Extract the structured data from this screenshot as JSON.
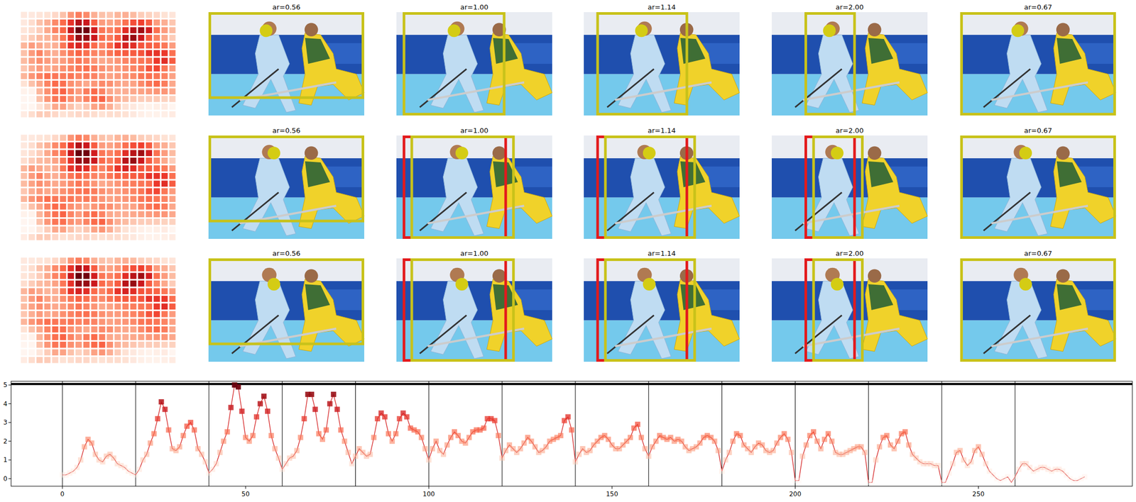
{
  "chart_data": {
    "type": "line",
    "x": [
      0,
      1,
      2,
      3,
      4,
      5,
      6,
      7,
      8,
      9,
      10,
      11,
      12,
      13,
      14,
      15,
      16,
      17,
      18,
      19,
      20,
      21,
      22,
      23,
      24,
      25,
      26,
      27,
      28,
      29,
      30,
      31,
      32,
      33,
      34,
      35,
      36,
      37,
      38,
      39,
      40,
      41,
      42,
      43,
      44,
      45,
      46,
      47,
      48,
      49,
      50,
      51,
      52,
      53,
      54,
      55,
      56,
      57,
      58,
      59,
      60,
      61,
      62,
      63,
      64,
      65,
      66,
      67,
      68,
      69,
      70,
      71,
      72,
      73,
      74,
      75,
      76,
      77,
      78,
      79,
      80,
      81,
      82,
      83,
      84,
      85,
      86,
      87,
      88,
      89,
      90,
      91,
      92,
      93,
      94,
      95,
      96,
      97,
      98,
      99,
      100,
      101,
      102,
      103,
      104,
      105,
      106,
      107,
      108,
      109,
      110,
      111,
      112,
      113,
      114,
      115,
      116,
      117,
      118,
      119,
      120,
      121,
      122,
      123,
      124,
      125,
      126,
      127,
      128,
      129,
      130,
      131,
      132,
      133,
      134,
      135,
      136,
      137,
      138,
      139,
      140,
      141,
      142,
      143,
      144,
      145,
      146,
      147,
      148,
      149,
      150,
      151,
      152,
      153,
      154,
      155,
      156,
      157,
      158,
      159,
      160,
      161,
      162,
      163,
      164,
      165,
      166,
      167,
      168,
      169,
      170,
      171,
      172,
      173,
      174,
      175,
      176,
      177,
      178,
      179,
      180,
      181,
      182,
      183,
      184,
      185,
      186,
      187,
      188,
      189,
      190,
      191,
      192,
      193,
      194,
      195,
      196,
      197,
      198,
      199,
      200,
      201,
      202,
      203,
      204,
      205,
      206,
      207,
      208,
      209,
      210,
      211,
      212,
      213,
      214,
      215,
      216,
      217,
      218,
      219,
      220,
      221,
      222,
      223,
      224,
      225,
      226,
      227,
      228,
      229,
      230,
      231,
      232,
      233,
      234,
      235,
      236,
      237,
      238,
      239,
      240,
      241,
      242,
      243,
      244,
      245,
      246,
      247,
      248,
      249,
      250,
      251,
      252,
      253,
      254,
      255,
      256,
      257,
      258,
      259,
      260,
      261,
      262,
      263,
      264,
      265,
      266,
      267,
      268,
      269,
      270,
      271,
      272,
      273,
      274,
      275,
      276,
      277,
      278,
      279
    ],
    "values": [
      0.2,
      0.2,
      0.3,
      0.4,
      0.6,
      1.0,
      1.7,
      2.1,
      1.9,
      1.3,
      1.0,
      0.9,
      1.2,
      1.3,
      1.1,
      0.8,
      0.7,
      0.6,
      0.4,
      0.3,
      0.2,
      0.5,
      1.0,
      1.3,
      1.9,
      2.4,
      3.2,
      4.1,
      3.7,
      2.6,
      1.6,
      1.5,
      1.7,
      2.3,
      2.8,
      3.0,
      2.6,
      1.6,
      1.3,
      0.9,
      0.3,
      0.5,
      0.8,
      1.4,
      2.0,
      2.5,
      3.8,
      5.0,
      4.9,
      3.6,
      2.2,
      2.0,
      2.3,
      3.3,
      4.0,
      4.4,
      3.6,
      2.3,
      1.6,
      1.1,
      0.5,
      0.8,
      1.1,
      1.2,
      1.5,
      2.2,
      3.2,
      4.5,
      4.5,
      3.7,
      2.4,
      2.1,
      2.6,
      4.0,
      4.5,
      3.7,
      2.6,
      2.0,
      1.4,
      0.8,
      1.2,
      1.6,
      1.4,
      1.2,
      1.3,
      2.2,
      3.2,
      3.5,
      3.3,
      2.4,
      2.0,
      2.4,
      3.2,
      3.5,
      3.3,
      2.7,
      2.6,
      2.5,
      2.2,
      1.6,
      1.0,
      1.6,
      2.0,
      1.5,
      1.3,
      1.8,
      2.2,
      2.5,
      2.3,
      2.0,
      1.9,
      2.2,
      2.5,
      2.6,
      2.6,
      2.7,
      3.2,
      3.2,
      3.1,
      2.3,
      1.1,
      1.5,
      1.8,
      1.6,
      1.4,
      1.6,
      1.9,
      2.2,
      2.0,
      1.7,
      1.4,
      1.5,
      1.7,
      2.0,
      2.1,
      2.2,
      2.3,
      3.1,
      3.3,
      2.6,
      0.9,
      1.3,
      1.6,
      1.4,
      1.5,
      1.8,
      2.0,
      2.2,
      2.3,
      2.1,
      1.8,
      1.6,
      1.6,
      1.8,
      2.0,
      2.2,
      2.7,
      2.9,
      2.2,
      1.6,
      1.2,
      1.7,
      2.0,
      2.3,
      2.2,
      2.1,
      2.2,
      2.0,
      2.1,
      2.0,
      1.7,
      1.5,
      1.6,
      1.7,
      1.9,
      2.2,
      2.3,
      2.2,
      2.0,
      1.5,
      0.4,
      1.0,
      1.4,
      2.0,
      2.4,
      2.3,
      1.8,
      1.6,
      1.4,
      1.7,
      1.9,
      1.8,
      1.5,
      1.4,
      1.5,
      1.9,
      2.2,
      2.4,
      2.1,
      1.4,
      -0.1,
      -0.1,
      1.2,
      1.8,
      2.3,
      2.5,
      2.0,
      1.6,
      2.1,
      2.4,
      2.0,
      1.4,
      1.3,
      1.3,
      1.4,
      1.5,
      1.6,
      1.7,
      1.7,
      1.4,
      -0.2,
      -0.2,
      1.0,
      1.7,
      2.2,
      2.3,
      1.8,
      1.6,
      2.0,
      2.4,
      2.5,
      1.8,
      1.3,
      1.1,
      0.9,
      0.8,
      0.8,
      0.8,
      0.7,
      0.7,
      -0.2,
      -0.2,
      0.3,
      0.8,
      1.4,
      1.5,
      1.0,
      0.7,
      0.9,
      1.5,
      1.7,
      1.3,
      0.8,
      0.4,
      0.2,
      0.0,
      -0.1,
      0.0,
      0.1,
      -0.2,
      0.1,
      0.5,
      0.8,
      0.8,
      0.6,
      0.4,
      0.5,
      0.6,
      0.6,
      0.5,
      0.4,
      0.5,
      0.5,
      0.4,
      0.2,
      0.0,
      -0.1,
      -0.1,
      0.0,
      0.1
    ],
    "color": "#d62728",
    "marker": "square",
    "grid": false,
    "xlim": [
      -14,
      292
    ],
    "ylim": [
      -0.4,
      5.2
    ],
    "xticks": [
      0,
      50,
      100,
      150,
      200,
      250
    ],
    "yticks": [
      0,
      1,
      2,
      3,
      4,
      5
    ],
    "vlines": [
      0,
      20,
      40,
      60,
      80,
      100,
      120,
      140,
      160,
      180,
      200,
      220,
      240,
      260
    ],
    "hline": 5.05
  },
  "panels": {
    "rows": [
      {
        "titles": [
          "ar=0.56",
          "ar=1.00",
          "ar=1.14",
          "ar=2.00",
          "ar=0.67"
        ]
      },
      {
        "titles": [
          "ar=0.56",
          "ar=1.00",
          "ar=1.14",
          "ar=2.00",
          "ar=0.67"
        ]
      },
      {
        "titles": [
          "ar=0.56",
          "ar=1.00",
          "ar=1.14",
          "ar=2.00",
          "ar=0.67"
        ]
      }
    ]
  }
}
